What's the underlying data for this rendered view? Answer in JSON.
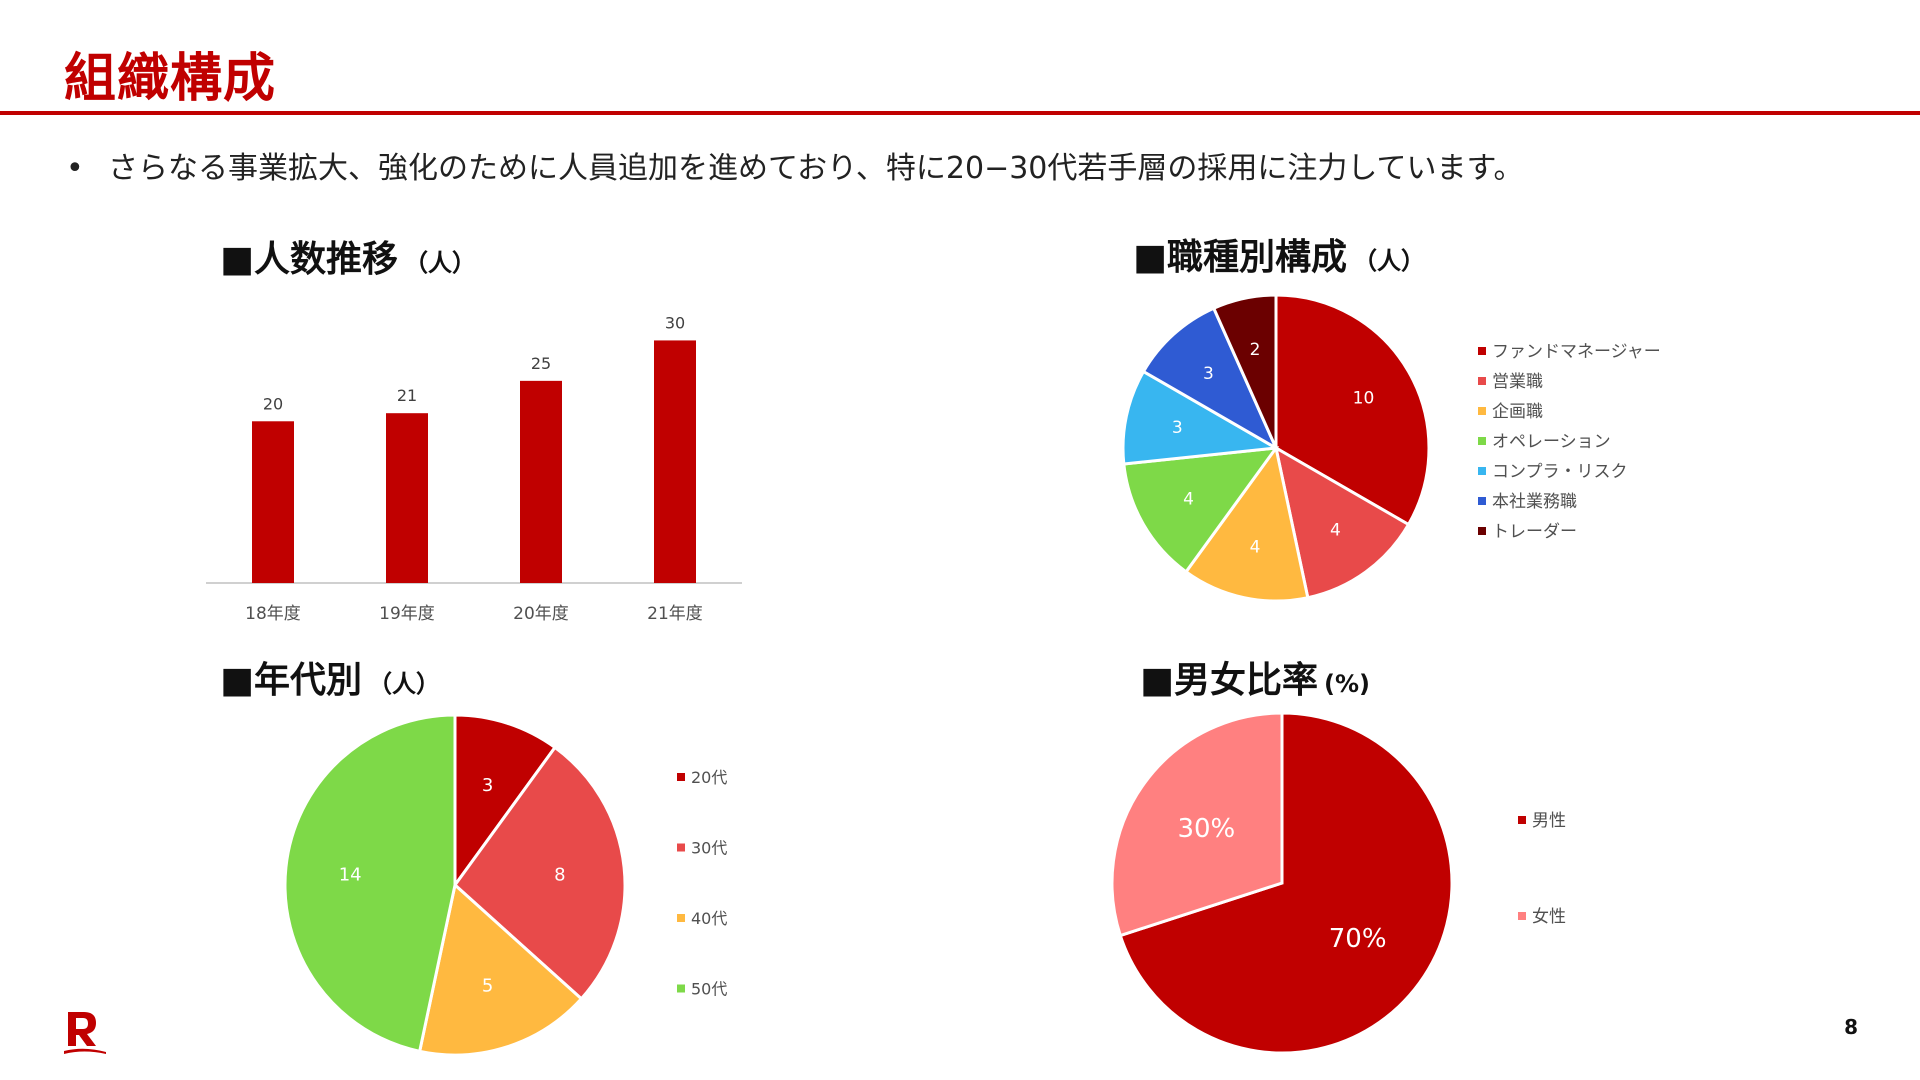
{
  "slide": {
    "title": "組織構成",
    "bullet": "さらなる事業拡大、強化のために人員追加を進めており、特に20−30代若手層の採用に注力しています。",
    "bullet_marker": "•",
    "page_number": "8",
    "accent_color": "#c00000"
  },
  "sections": {
    "headcount": {
      "title": "人数推移",
      "unit": "（人）",
      "marker": "■"
    },
    "job": {
      "title": "職種別構成",
      "unit": "（人）",
      "marker": "■"
    },
    "age": {
      "title": "年代別",
      "unit": "（人）",
      "marker": "■"
    },
    "gender": {
      "title": "男女比率",
      "unit": "(%)",
      "marker": "■"
    }
  },
  "chart_data": [
    {
      "type": "bar",
      "categories": [
        "18年度",
        "19年度",
        "20年度",
        "21年度"
      ],
      "values": [
        20,
        21,
        25,
        30
      ],
      "colors": [
        "#c00000"
      ],
      "ylim": [
        0,
        35
      ],
      "grid": false,
      "legend": "none"
    },
    {
      "type": "pie",
      "categories": [
        "ファンドマネージャー",
        "営業職",
        "企画職",
        "オペレーション",
        "コンプラ・リスク",
        "本社業務職",
        "トレーダー"
      ],
      "values": [
        10,
        4,
        4,
        4,
        3,
        3,
        2
      ],
      "colors": [
        "#c00000",
        "#e84a4a",
        "#ffb940",
        "#7ed948",
        "#38b6f0",
        "#2f5bd3",
        "#6b0000"
      ],
      "legend": "right"
    },
    {
      "type": "pie",
      "categories": [
        "20代",
        "30代",
        "40代",
        "50代"
      ],
      "values": [
        3,
        8,
        5,
        14
      ],
      "colors": [
        "#c00000",
        "#e84a4a",
        "#ffb940",
        "#7ed948"
      ],
      "legend": "right"
    },
    {
      "type": "pie",
      "categories": [
        "男性",
        "女性"
      ],
      "values": [
        70,
        30
      ],
      "labels": [
        "70%",
        "30%"
      ],
      "colors": [
        "#c00000",
        "#ff8080"
      ],
      "legend": "right"
    }
  ]
}
